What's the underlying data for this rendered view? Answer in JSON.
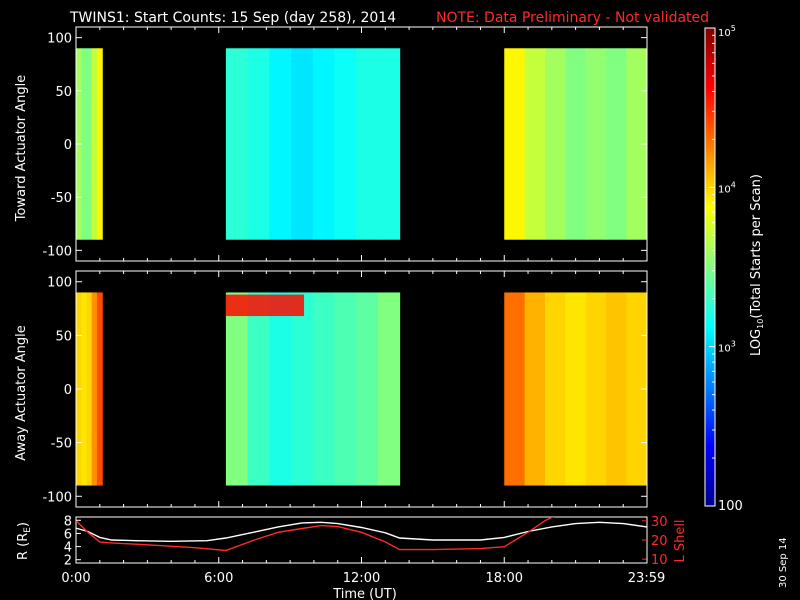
{
  "header": {
    "title": "TWINS1: Start Counts: 15 Sep (day 258), 2014",
    "note": "NOTE: Data Preliminary - Not validated"
  },
  "stamp": "30 Sep 14",
  "colorbar": {
    "label": "LOG10(Total Starts per Scan)",
    "label_main": "LOG",
    "label_sub": "10",
    "label_tail": "(Total Starts per Scan)",
    "ticks": [
      {
        "value": 100000,
        "base": "10",
        "exp": "5"
      },
      {
        "value": 10000,
        "base": "10",
        "exp": "4"
      },
      {
        "value": 1000,
        "base": "10",
        "exp": "3"
      },
      {
        "value": 100,
        "label": "100"
      }
    ],
    "range": [
      100,
      100000
    ],
    "scale": "log",
    "colors": [
      "#00008f",
      "#0000ff",
      "#0080ff",
      "#00ffff",
      "#80ff80",
      "#ffff00",
      "#ff8000",
      "#ff0000",
      "#800000"
    ]
  },
  "chart_data": [
    {
      "type": "heatmap",
      "panel": "top",
      "ylabel": "Toward Actuator Angle",
      "xlim": [
        0,
        24
      ],
      "ylim": [
        -110,
        110
      ],
      "yticks": [
        "100",
        "50",
        "0",
        "-50",
        "-100"
      ],
      "ytick_values": [
        100,
        50,
        0,
        -50,
        -100
      ],
      "data_y_range": [
        -90,
        90
      ],
      "segments": [
        {
          "start": 0.0,
          "end": 1.1,
          "log_levels_by_time": [
            3.6,
            3.5,
            3.5,
            3.7,
            3.9
          ]
        },
        {
          "start": 6.3,
          "end": 13.6,
          "log_levels_by_time": [
            3.25,
            3.2,
            3.1,
            3.05,
            3.1,
            3.15,
            3.2,
            3.2
          ]
        },
        {
          "start": 18.0,
          "end": 23.99,
          "log_levels_by_time": [
            3.9,
            3.7,
            3.6,
            3.5,
            3.55,
            3.5,
            3.6
          ]
        }
      ]
    },
    {
      "type": "heatmap",
      "panel": "middle",
      "ylabel": "Away Actuator Angle",
      "xlim": [
        0,
        24
      ],
      "ylim": [
        -110,
        110
      ],
      "yticks": [
        "100",
        "50",
        "0",
        "-50",
        "-100"
      ],
      "ytick_values": [
        100,
        50,
        0,
        -50,
        -100
      ],
      "data_y_range": [
        -90,
        90
      ],
      "segments": [
        {
          "start": 0.0,
          "end": 1.1,
          "log_levels_by_time": [
            4.0,
            3.95,
            4.0,
            4.2,
            4.4
          ]
        },
        {
          "start": 6.3,
          "end": 13.6,
          "log_levels_by_time": [
            3.5,
            3.3,
            3.2,
            3.25,
            3.3,
            3.35,
            3.4,
            3.5
          ],
          "band": {
            "angle_range": [
              68,
              88
            ],
            "log_level": 4.6
          }
        },
        {
          "start": 18.0,
          "end": 23.99,
          "log_levels_by_time": [
            4.3,
            4.1,
            4.0,
            3.95,
            4.0,
            4.05,
            4.0
          ]
        }
      ]
    },
    {
      "type": "line",
      "panel": "orbit",
      "ylabel": "R (RE)",
      "ylabel_main": "R (R",
      "ylabel_sub": "E",
      "ylabel_tail": ")",
      "y2label": "L Shell",
      "xlabel": "Time (UT)",
      "xlim": [
        0,
        24
      ],
      "xticks": [
        "0:00",
        "6:00",
        "12:00",
        "18:00",
        "23:59"
      ],
      "xtick_values": [
        0,
        6,
        12,
        18,
        23.98
      ],
      "ylim": [
        1.5,
        8.5
      ],
      "yticks": [
        "8",
        "6",
        "4",
        "2"
      ],
      "ytick_values": [
        8,
        6,
        4,
        2
      ],
      "y2lim": [
        8,
        32
      ],
      "y2ticks": [
        "30",
        "20",
        "10"
      ],
      "y2tick_values": [
        30,
        20,
        10
      ],
      "series": [
        {
          "name": "R",
          "color": "#ffffff",
          "x": [
            0,
            0.5,
            1.0,
            1.5,
            2.5,
            4.0,
            5.5,
            6.3,
            7.5,
            8.5,
            9.5,
            10.3,
            11.0,
            12.0,
            13.0,
            13.6,
            15.0,
            17.0,
            18.0,
            19.0,
            20.0,
            21.0,
            22.0,
            23.0,
            23.99
          ],
          "y": [
            6.8,
            6.3,
            5.4,
            5.0,
            4.9,
            4.8,
            4.9,
            5.3,
            6.2,
            7.0,
            7.6,
            7.7,
            7.5,
            6.9,
            6.1,
            5.3,
            5.0,
            5.0,
            5.4,
            6.3,
            7.0,
            7.5,
            7.7,
            7.5,
            7.0
          ]
        },
        {
          "name": "L Shell",
          "color": "#ff2a2a",
          "axis": "right",
          "x": [
            0,
            0.5,
            1.0,
            1.5,
            3.0,
            5.0,
            6.3,
            7.5,
            8.5,
            9.5,
            10.3,
            11.0,
            12.0,
            13.0,
            13.6,
            15.0,
            17.0,
            18.0,
            19.0,
            19.7,
            20.2
          ],
          "y": [
            30.0,
            24.0,
            19.0,
            18.5,
            17.5,
            16.0,
            14.5,
            20.0,
            24.0,
            26.0,
            27.5,
            27.0,
            24.0,
            19.0,
            15.0,
            15.0,
            15.5,
            16.5,
            24.0,
            30.0,
            33.0
          ]
        }
      ]
    }
  ]
}
